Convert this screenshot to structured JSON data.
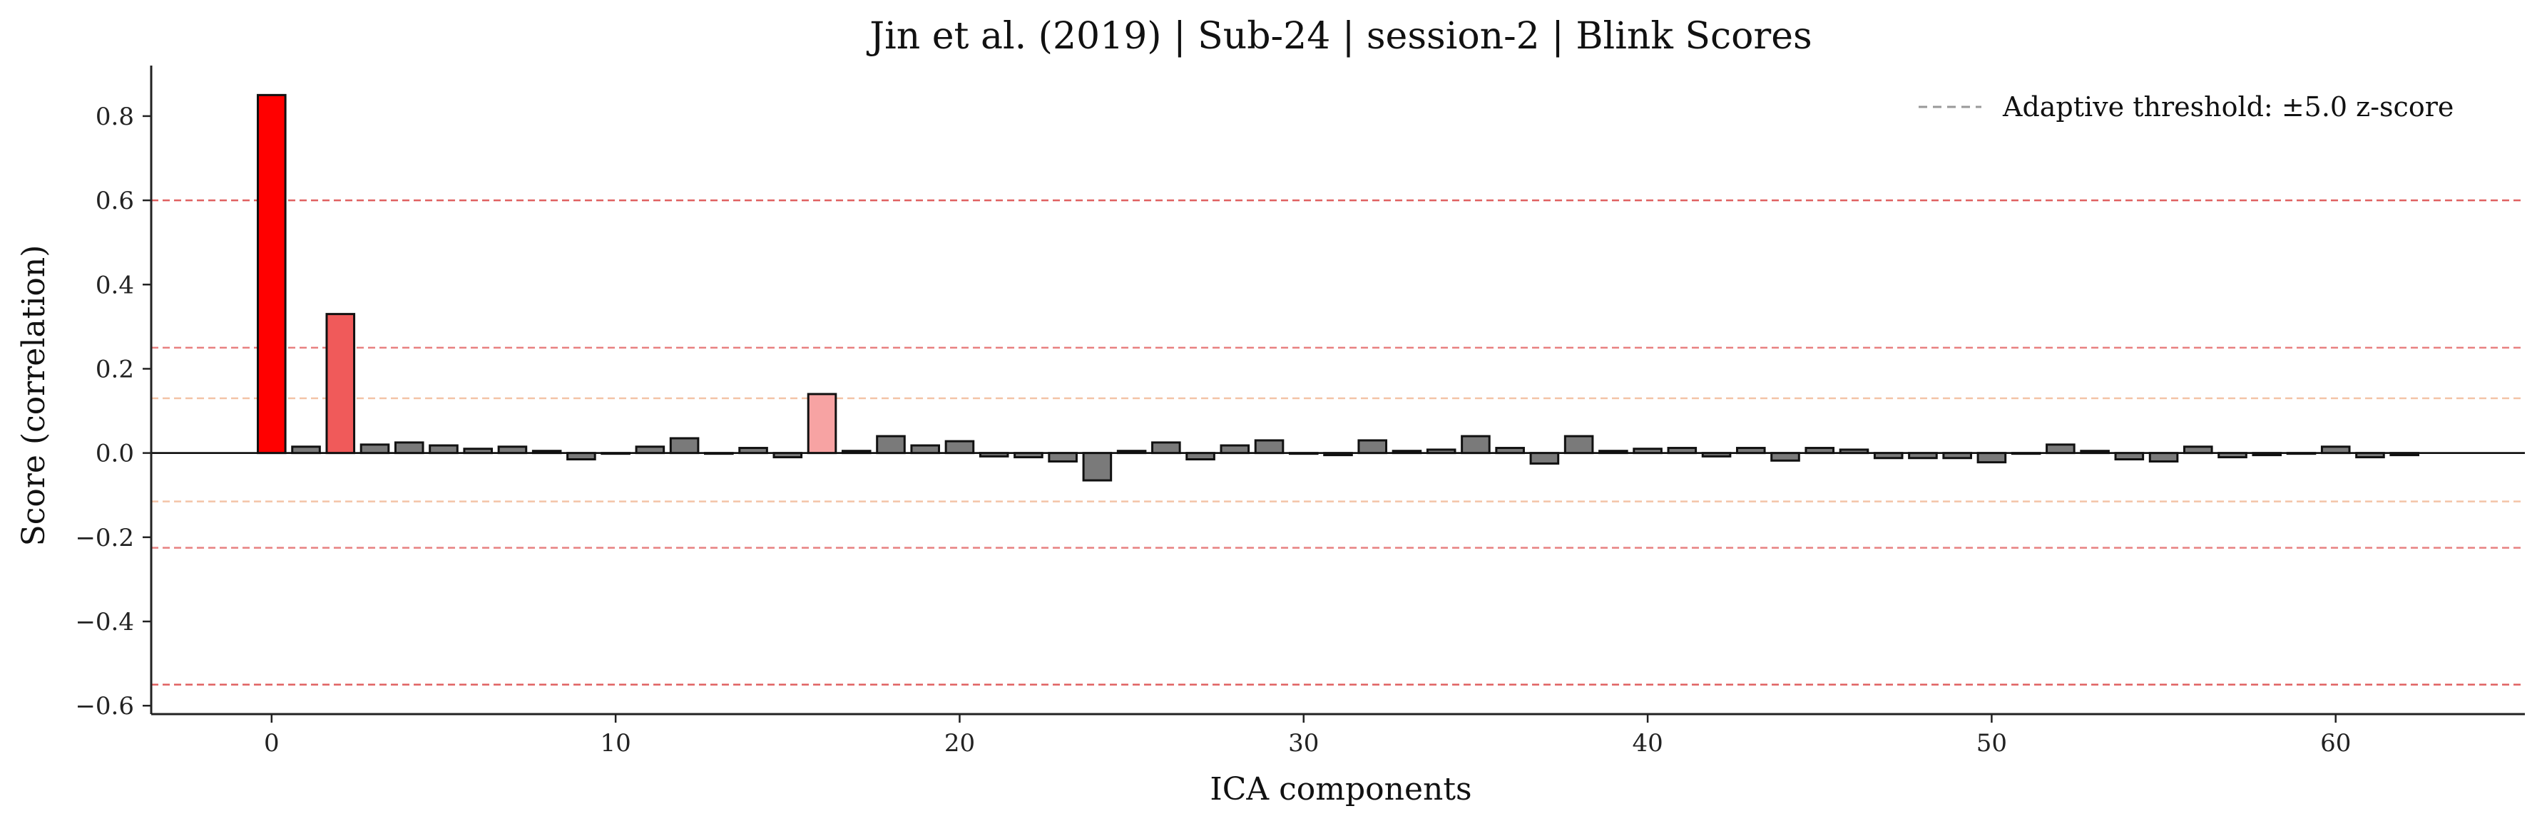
{
  "chart_data": {
    "type": "bar",
    "title": "Jin et al. (2019) | Sub-24 | session-2 | Blink Scores",
    "xlabel": "ICA components",
    "ylabel": "Score (correlation)",
    "xlim": [
      -3.5,
      65.5
    ],
    "ylim": [
      -0.62,
      0.92
    ],
    "xticks": [
      0,
      10,
      20,
      30,
      40,
      50,
      60
    ],
    "xtick_labels": [
      "0",
      "10",
      "20",
      "30",
      "40",
      "50",
      "60"
    ],
    "yticks": [
      -0.6,
      -0.4,
      -0.2,
      0.0,
      0.2,
      0.4,
      0.6,
      0.8
    ],
    "ytick_labels": [
      "−0.6",
      "−0.4",
      "−0.2",
      "0.0",
      "0.2",
      "0.4",
      "0.6",
      "0.8"
    ],
    "x": [
      0,
      1,
      2,
      3,
      4,
      5,
      6,
      7,
      8,
      9,
      10,
      11,
      12,
      13,
      14,
      15,
      16,
      17,
      18,
      19,
      20,
      21,
      22,
      23,
      24,
      25,
      26,
      27,
      28,
      29,
      30,
      31,
      32,
      33,
      34,
      35,
      36,
      37,
      38,
      39,
      40,
      41,
      42,
      43,
      44,
      45,
      46,
      47,
      48,
      49,
      50,
      51,
      52,
      53,
      54,
      55,
      56,
      57,
      58,
      59,
      60,
      61,
      62
    ],
    "values": [
      0.85,
      0.015,
      0.33,
      0.02,
      0.025,
      0.018,
      0.01,
      0.015,
      0.005,
      -0.015,
      0.0,
      0.015,
      0.035,
      0.0,
      0.012,
      -0.01,
      0.14,
      0.005,
      0.04,
      0.018,
      0.028,
      -0.008,
      -0.01,
      -0.02,
      -0.065,
      0.005,
      0.025,
      -0.015,
      0.018,
      0.03,
      0.0,
      -0.005,
      0.03,
      0.005,
      0.008,
      0.04,
      0.012,
      -0.025,
      0.04,
      0.005,
      0.01,
      0.012,
      -0.008,
      0.012,
      -0.018,
      0.012,
      0.008,
      -0.012,
      -0.012,
      -0.012,
      -0.022,
      0.0,
      0.02,
      0.005,
      -0.015,
      -0.02,
      0.015,
      -0.01,
      -0.005,
      0.0,
      0.015,
      -0.01,
      -0.005
    ],
    "bar_colors": {
      "0": "#ff0000",
      "2": "#f05a5a",
      "16": "#f7a3a3",
      "default": "#7a7a7a"
    },
    "threshold_lines": [
      {
        "y": 0.6,
        "color": "#e06060"
      },
      {
        "y": 0.25,
        "color": "#e88080"
      },
      {
        "y": 0.13,
        "color": "#f3c4a8"
      },
      {
        "y": -0.115,
        "color": "#f3c4a8"
      },
      {
        "y": -0.225,
        "color": "#e88080"
      },
      {
        "y": -0.55,
        "color": "#e06060"
      }
    ],
    "legend": {
      "label": "Adaptive threshold: ±5.0 z-score",
      "position": "top-right",
      "line_color": "#999999"
    }
  }
}
